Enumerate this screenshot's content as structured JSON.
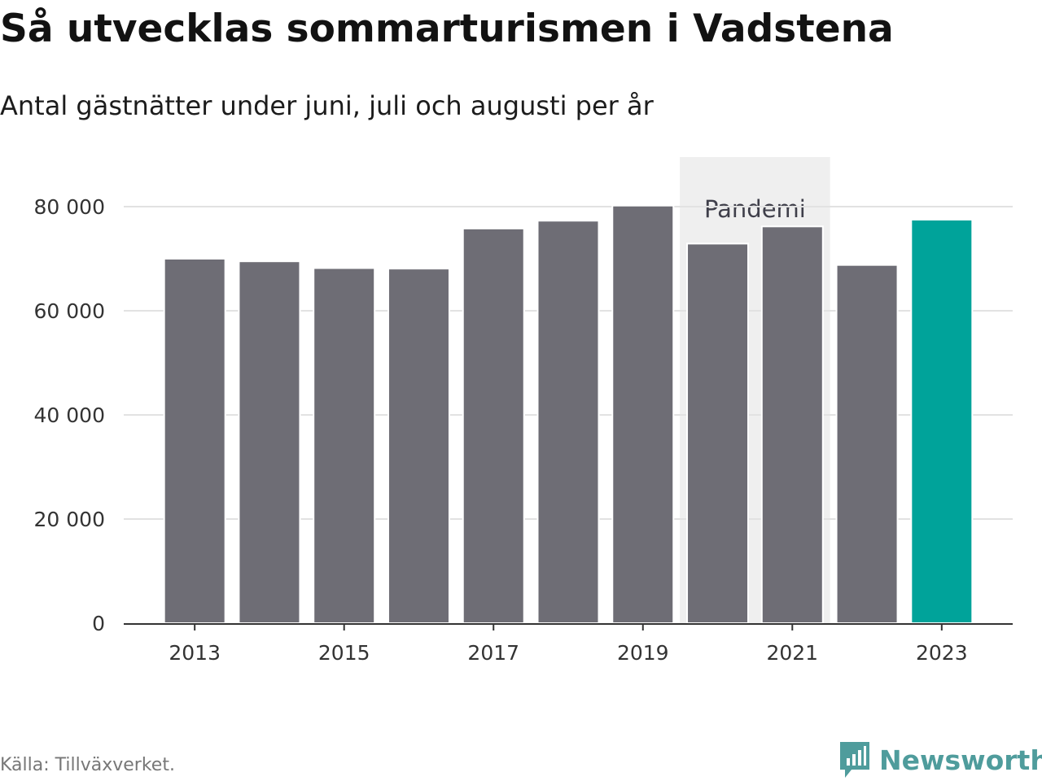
{
  "title": "Så utvecklas sommarturismen i Vadstena",
  "subtitle": "Antal gästnätter under juni, juli och augusti per år",
  "source": "Källa: Tillväxverket.",
  "brand": {
    "name": "Newsworthy",
    "icon": "newsworthy-logo-icon",
    "color": "#4f9c9c"
  },
  "colors": {
    "bar": "#6e6d75",
    "highlight": "#00a39a",
    "grid": "#e2e2e2",
    "shade": "#efefef"
  },
  "chart_data": {
    "type": "bar",
    "categories": [
      "2013",
      "2014",
      "2015",
      "2016",
      "2017",
      "2018",
      "2019",
      "2020",
      "2021",
      "2022",
      "2023"
    ],
    "values": [
      70000,
      69500,
      68200,
      68100,
      75800,
      77300,
      80200,
      72900,
      76200,
      68800,
      77500
    ],
    "highlight_category": "2023",
    "ylim": [
      0,
      90000
    ],
    "yticks": [
      0,
      20000,
      40000,
      60000,
      80000
    ],
    "ytick_labels": [
      "0",
      "20 000",
      "40 000",
      "60 000",
      "80 000"
    ],
    "xtick_labels": [
      "2013",
      "2015",
      "2017",
      "2019",
      "2021",
      "2023"
    ],
    "annotation": {
      "label": "Pandemi",
      "from": "2020",
      "to": "2021"
    },
    "grid": true,
    "xlabel": "",
    "ylabel": ""
  }
}
